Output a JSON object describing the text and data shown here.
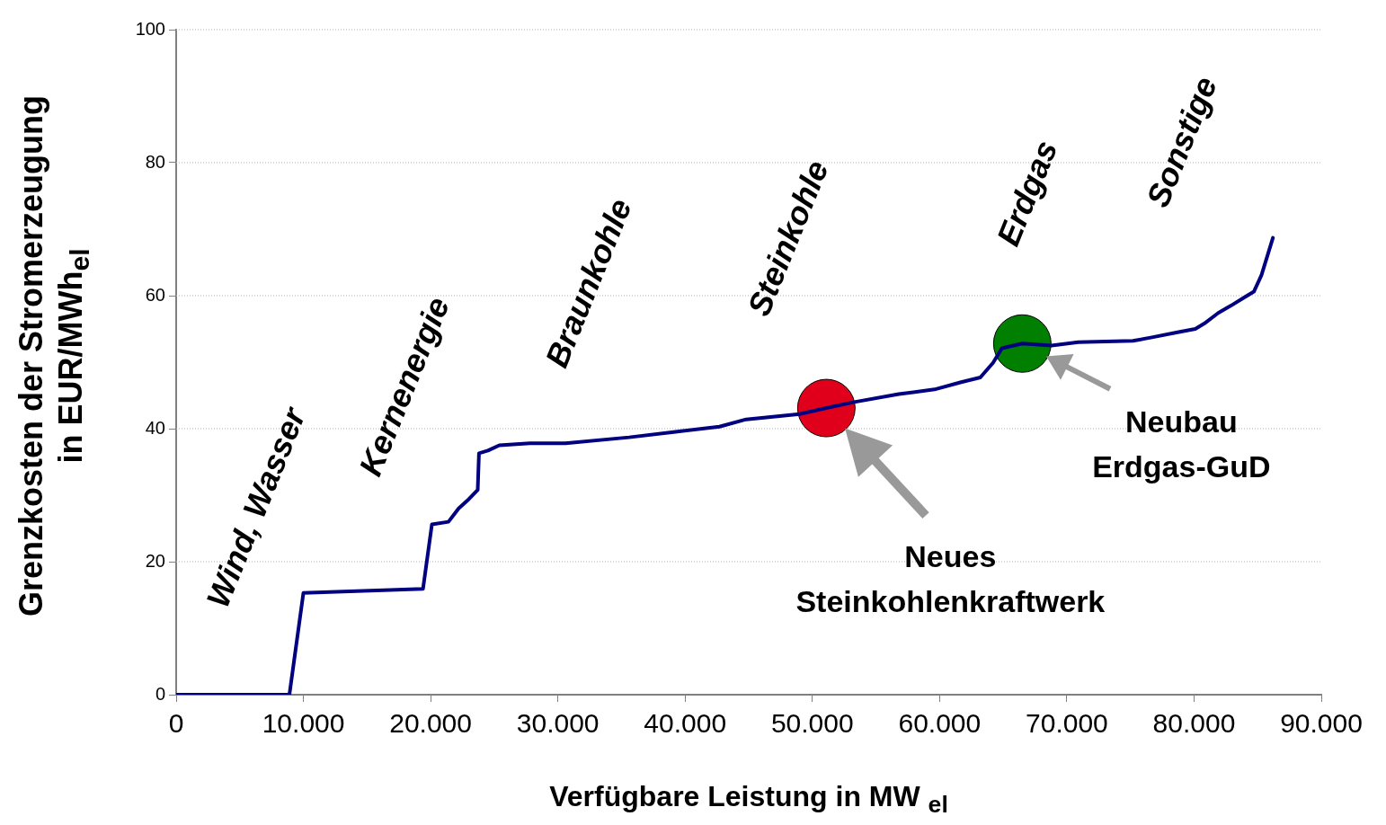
{
  "chart_data": {
    "type": "line",
    "xlabel": "Verfügbare Leistung in MW $_{el}$",
    "ylabel": "Grenzkosten der Stromerzeugung\nin EUR/MWh$_{el}$",
    "xlim": [
      0,
      90000
    ],
    "xticks": [
      0,
      {
        "value": 10000,
        "label": "10.000"
      },
      {
        "value": 20000,
        "label": "20.000"
      },
      {
        "value": 30000,
        "label": "30.000"
      },
      {
        "value": 40000,
        "label": "40.000"
      },
      {
        "value": 50000,
        "label": "50.000"
      },
      {
        "value": 60000,
        "label": "60.000"
      },
      {
        "value": 70000,
        "label": "70.000"
      },
      {
        "value": 80000,
        "label": "80.000"
      },
      {
        "value": 90000,
        "label": "90.000"
      }
    ],
    "ylim": [
      0,
      100
    ],
    "yticks": [
      0,
      20,
      40,
      60,
      80,
      100
    ],
    "grid": "y",
    "legend": false,
    "marker": "none",
    "line_style": "solid",
    "series": [
      {
        "color": "#000080",
        "x": [
          0,
          8900,
          10000,
          19400,
          20100,
          21400,
          22200,
          23000,
          23700,
          23800,
          24500,
          25400,
          27800,
          30600,
          35600,
          39100,
          42700,
          44800,
          49000,
          51100,
          53300,
          56800,
          59600,
          61700,
          63200,
          64200,
          64900,
          66500,
          68800,
          70900,
          75200,
          76600,
          78700,
          80100,
          80800,
          81900,
          82900,
          84000,
          84700,
          85300,
          86200
        ],
        "values": [
          0,
          0,
          15.3,
          15.9,
          25.6,
          26.0,
          28.0,
          29.4,
          30.8,
          36.3,
          36.7,
          37.5,
          37.8,
          37.8,
          38.7,
          39.5,
          40.3,
          41.4,
          42.2,
          43.1,
          44.0,
          45.2,
          45.9,
          47.0,
          47.7,
          49.9,
          52.1,
          52.8,
          52.5,
          53.0,
          53.2,
          53.7,
          54.5,
          55.0,
          55.8,
          57.4,
          58.5,
          59.8,
          60.6,
          63.1,
          68.7
        ]
      },
      {
        "type": "scatter",
        "color": "#e0001b",
        "marker": "circle",
        "x": [
          51100
        ],
        "values": [
          43.1
        ]
      },
      {
        "type": "scatter",
        "color": "#007f00",
        "marker": "circle",
        "x": [
          66500
        ],
        "values": [
          52.8
        ]
      }
    ],
    "annotations": [
      "Wind, Wasser",
      "Kernenergie",
      "Braunkohle",
      "Steinkohle",
      "Erdgas",
      "Sonstige",
      "Neues\nSteinkohlenkraftwerk",
      "Neubau\nErdgas-GuD"
    ]
  }
}
